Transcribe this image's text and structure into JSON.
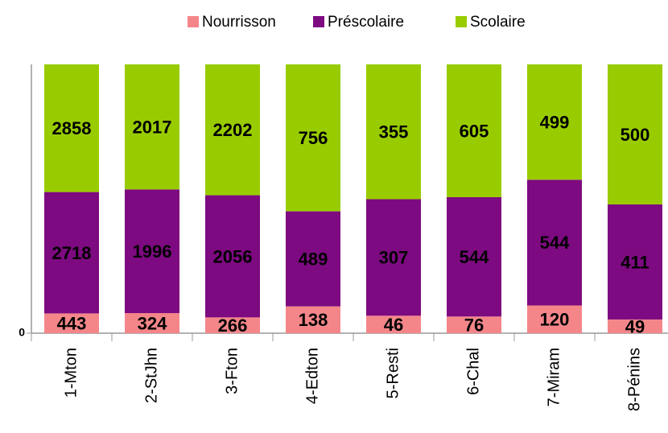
{
  "chart_data": {
    "type": "stacked_percent_bar",
    "categories": [
      "1-Mton",
      "2-StJhn",
      "3-Fton",
      "4-Edton",
      "5-Resti",
      "6-Chal",
      "7-Miram",
      "8-Pénins"
    ],
    "series": [
      {
        "name": "Nourrisson",
        "color": "#f4868a",
        "values": [
          443,
          324,
          266,
          138,
          46,
          76,
          120,
          49
        ]
      },
      {
        "name": "Préscolaire",
        "color": "#7d0a80",
        "values": [
          2718,
          1996,
          2056,
          489,
          307,
          544,
          544,
          411
        ]
      },
      {
        "name": "Scolaire",
        "color": "#99cc00",
        "values": [
          2858,
          2017,
          2202,
          756,
          355,
          605,
          499,
          500
        ]
      }
    ],
    "ylim": [
      0,
      100
    ],
    "yticks": [
      0
    ],
    "legend": "top"
  }
}
